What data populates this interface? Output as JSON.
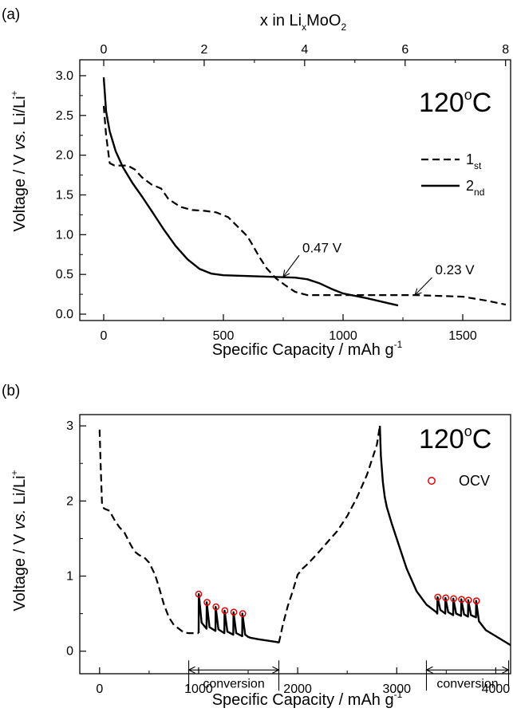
{
  "chart_data": [
    {
      "panel_label": "(a)",
      "type": "line",
      "top_axis_label": "x in Li",
      "top_axis_label_sub": "x",
      "top_axis_label_tail": "MoO",
      "top_axis_label_tail_sub": "2",
      "top_ticks": [
        "0",
        "2",
        "4",
        "6",
        "8"
      ],
      "top_tick_values": [
        0,
        2,
        4,
        6,
        8
      ],
      "xlabel": "Specific Capacity / mAh g",
      "xlabel_sup": "-1",
      "ylabel": "Voltage / V vs. Li/Li",
      "ylabel_parts": [
        "Voltage / V ",
        "vs.",
        " Li/Li"
      ],
      "ylabel_sup": "+",
      "xlim": [
        -100,
        1700
      ],
      "ylim": [
        -0.08,
        3.2
      ],
      "top_xlim": [
        0,
        8.1
      ],
      "x_ticks": [
        0,
        500,
        1000,
        1500
      ],
      "x_tick_labels": [
        "0",
        "500",
        "1000",
        "1500"
      ],
      "x_minor_ticks": [
        250,
        750,
        1250
      ],
      "y_ticks": [
        0.0,
        0.5,
        1.0,
        1.5,
        2.0,
        2.5,
        3.0
      ],
      "y_tick_labels": [
        "0.0",
        "0.5",
        "1.0",
        "1.5",
        "2.0",
        "2.5",
        "3.0"
      ],
      "y_minor_ticks": [
        0.25,
        0.75,
        1.25,
        1.75,
        2.25,
        2.75
      ],
      "temperature_label": "120",
      "temperature_unit": "C",
      "temperature_sup": "o",
      "legend_position": "right",
      "series": [
        {
          "name": "1",
          "name_sub": "st",
          "style": "dashed",
          "x": [
            0,
            10,
            25,
            45,
            100,
            130,
            160,
            200,
            240,
            270,
            320,
            370,
            420,
            470,
            520,
            560,
            600,
            620,
            650,
            680,
            720,
            760,
            800,
            850,
            900,
            1000,
            1100,
            1200,
            1300,
            1400,
            1500,
            1600,
            1680
          ],
          "y": [
            2.62,
            2.25,
            1.9,
            1.87,
            1.87,
            1.82,
            1.72,
            1.63,
            1.58,
            1.45,
            1.35,
            1.31,
            1.3,
            1.28,
            1.22,
            1.1,
            0.98,
            0.88,
            0.72,
            0.58,
            0.45,
            0.36,
            0.28,
            0.24,
            0.24,
            0.24,
            0.24,
            0.24,
            0.24,
            0.23,
            0.22,
            0.17,
            0.12
          ]
        },
        {
          "name": "2",
          "name_sub": "nd",
          "style": "solid",
          "x": [
            0,
            10,
            25,
            50,
            80,
            120,
            160,
            200,
            250,
            300,
            350,
            400,
            450,
            500,
            600,
            700,
            800,
            850,
            900,
            950,
            1000,
            1100,
            1200,
            1230
          ],
          "y": [
            2.98,
            2.55,
            2.3,
            2.05,
            1.85,
            1.65,
            1.48,
            1.3,
            1.07,
            0.86,
            0.69,
            0.57,
            0.51,
            0.49,
            0.48,
            0.47,
            0.46,
            0.44,
            0.39,
            0.32,
            0.26,
            0.2,
            0.13,
            0.11
          ]
        }
      ],
      "annotations": [
        {
          "text": "0.47 V",
          "x": 750,
          "y": 0.47,
          "tx": 830,
          "ty": 0.78
        },
        {
          "text": "0.23 V",
          "x": 1300,
          "y": 0.24,
          "tx": 1385,
          "ty": 0.5
        }
      ]
    },
    {
      "panel_label": "(b)",
      "type": "line",
      "xlabel": "Specific Capacity / mAh g",
      "xlabel_sup": "-1",
      "ylabel": "Voltage / V vs. Li/Li",
      "ylabel_parts": [
        "Voltage / V ",
        "vs.",
        " Li/Li"
      ],
      "ylabel_sup": "+",
      "xlim": [
        -200,
        4150
      ],
      "ylim": [
        -0.3,
        3.15
      ],
      "x_ticks": [
        0,
        1000,
        2000,
        3000,
        4000
      ],
      "x_tick_labels": [
        "0",
        "1000",
        "2000",
        "3000",
        "4000"
      ],
      "x_minor_ticks": [
        500,
        1500,
        2500,
        3500
      ],
      "y_ticks": [
        0,
        1,
        2,
        3
      ],
      "y_tick_labels": [
        "0",
        "1",
        "2",
        "3"
      ],
      "y_minor_ticks": [
        0.5,
        1.5,
        2.5
      ],
      "temperature_label": "120",
      "temperature_unit": "C",
      "temperature_sup": "o",
      "legend_position": "right",
      "series": [
        {
          "style": "dashed",
          "x": [
            0,
            10,
            25,
            45,
            100,
            150,
            200,
            250,
            300,
            350,
            400,
            450,
            500,
            560,
            600,
            650,
            700,
            750,
            800,
            850,
            900,
            1000
          ],
          "y": [
            2.95,
            2.5,
            1.95,
            1.9,
            1.87,
            1.75,
            1.65,
            1.58,
            1.45,
            1.33,
            1.28,
            1.25,
            1.18,
            1.02,
            0.85,
            0.62,
            0.45,
            0.35,
            0.3,
            0.25,
            0.24,
            0.24
          ]
        },
        {
          "style": "solid",
          "x": [
            1000,
            1002,
            1030,
            1080,
            1082,
            1110,
            1170,
            1172,
            1200,
            1260,
            1262,
            1290,
            1350,
            1352,
            1380,
            1440,
            1442,
            1470,
            1500,
            1520,
            1600,
            1700,
            1800,
            1810
          ],
          "y": [
            0.24,
            0.76,
            0.38,
            0.3,
            0.65,
            0.32,
            0.27,
            0.59,
            0.29,
            0.24,
            0.54,
            0.26,
            0.22,
            0.52,
            0.24,
            0.2,
            0.5,
            0.22,
            0.19,
            0.18,
            0.16,
            0.14,
            0.12,
            0.11
          ]
        },
        {
          "style": "dashed",
          "x": [
            1810,
            1850,
            1900,
            1950,
            2000,
            2050,
            2100,
            2200,
            2300,
            2400,
            2500,
            2600,
            2700,
            2750,
            2800,
            2830
          ],
          "y": [
            0.11,
            0.35,
            0.6,
            0.8,
            1.02,
            1.1,
            1.16,
            1.3,
            1.45,
            1.6,
            1.8,
            2.05,
            2.35,
            2.55,
            2.75,
            3.0
          ]
        },
        {
          "style": "solid",
          "x": [
            2830,
            2840,
            2860,
            2880,
            2900,
            2950,
            3000,
            3050,
            3100,
            3200,
            3300,
            3400,
            3410,
            3412,
            3440,
            3490,
            3492,
            3520,
            3570,
            3572,
            3600,
            3650,
            3652,
            3680,
            3720,
            3722,
            3750,
            3800,
            3802,
            3830,
            3900,
            4000,
            4100,
            4150
          ],
          "y": [
            3.0,
            2.6,
            2.25,
            2.05,
            1.92,
            1.7,
            1.5,
            1.3,
            1.1,
            0.8,
            0.62,
            0.52,
            0.5,
            0.72,
            0.55,
            0.5,
            0.71,
            0.52,
            0.48,
            0.7,
            0.5,
            0.47,
            0.69,
            0.49,
            0.46,
            0.68,
            0.48,
            0.45,
            0.67,
            0.4,
            0.28,
            0.2,
            0.12,
            0.08
          ]
        }
      ],
      "ocv_series": {
        "name": "OCV",
        "x": [
          1000,
          1085,
          1175,
          1265,
          1355,
          1445,
          3415,
          3495,
          3575,
          3655,
          3725,
          3805
        ],
        "y": [
          0.76,
          0.65,
          0.59,
          0.54,
          0.52,
          0.5,
          0.72,
          0.71,
          0.7,
          0.69,
          0.68,
          0.67
        ]
      },
      "regions": [
        {
          "label": "conversion",
          "x_start": 900,
          "x_end": 1810,
          "y": -0.25
        },
        {
          "label": "conversion",
          "x_start": 3300,
          "x_end": 4130,
          "y": -0.25
        }
      ]
    }
  ],
  "colors": {
    "line": "#000000",
    "ocv_marker": "#e60000"
  }
}
